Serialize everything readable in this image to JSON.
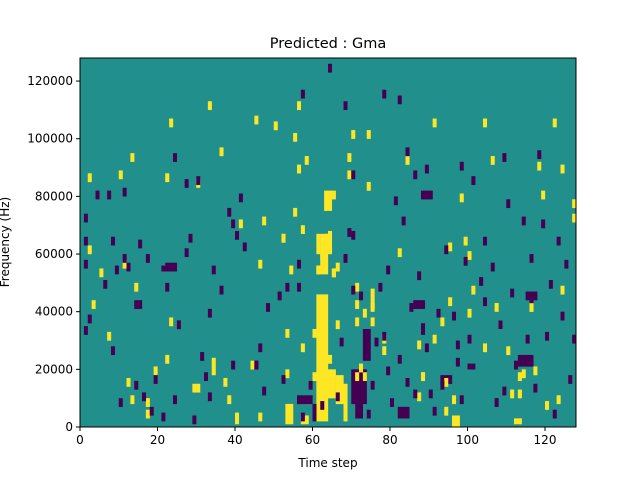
{
  "chart_data": {
    "type": "heatmap",
    "title": "Predicted : Gma",
    "xlabel": "Time step",
    "ylabel": "Frequency (Hz)",
    "xlim": [
      0,
      128
    ],
    "ylim": [
      0,
      128000
    ],
    "x_ticks": [
      0,
      20,
      40,
      60,
      80,
      100,
      120
    ],
    "y_ticks": [
      0,
      20000,
      40000,
      60000,
      80000,
      100000,
      120000
    ],
    "y_tick_labels": [
      "0",
      "20000",
      "40000",
      "60000",
      "80000",
      "100000",
      "120000"
    ],
    "grid": false,
    "legend": "none",
    "colors": {
      "background": "#21908d",
      "high": "#fde725",
      "low": "#440154"
    },
    "background_value": 0,
    "value_levels": {
      "low": -1,
      "background": 0,
      "high": 1
    },
    "time_steps": 128,
    "freq_bins": 128,
    "freq_bin_hz": 1000,
    "high_cells": [
      [
        2,
        60
      ],
      [
        2,
        85
      ],
      [
        5,
        52
      ],
      [
        7,
        30
      ],
      [
        11,
        55
      ],
      [
        12,
        14
      ],
      [
        13,
        8
      ],
      [
        14,
        47
      ],
      [
        17,
        7
      ],
      [
        17,
        3
      ],
      [
        19,
        18
      ],
      [
        22,
        85
      ],
      [
        23,
        104
      ],
      [
        29,
        12
      ],
      [
        30,
        12
      ],
      [
        30,
        83
      ],
      [
        34,
        18
      ],
      [
        34,
        21
      ],
      [
        37,
        14
      ],
      [
        40,
        2
      ],
      [
        40,
        1
      ],
      [
        44,
        20
      ],
      [
        46,
        2
      ],
      [
        52,
        64
      ],
      [
        52,
        64
      ],
      [
        53,
        17
      ],
      [
        55,
        73
      ],
      [
        55,
        99
      ],
      [
        57,
        67
      ],
      [
        60,
        31
      ],
      [
        60,
        16
      ],
      [
        61,
        53
      ],
      [
        61,
        53
      ],
      [
        62,
        58
      ],
      [
        63,
        64
      ],
      [
        63,
        63
      ],
      [
        64,
        65
      ],
      [
        65,
        79
      ],
      [
        65,
        52
      ],
      [
        65,
        52
      ],
      [
        69,
        92
      ],
      [
        69,
        86
      ],
      [
        71,
        35
      ],
      [
        71,
        16
      ],
      [
        73,
        16
      ],
      [
        75,
        40
      ],
      [
        75,
        35
      ],
      [
        78,
        25
      ],
      [
        78,
        29
      ],
      [
        87,
        27
      ],
      [
        88,
        16
      ],
      [
        88,
        16
      ],
      [
        93,
        35
      ],
      [
        94,
        14
      ],
      [
        94,
        4
      ],
      [
        96,
        8
      ],
      [
        99,
        63
      ],
      [
        100,
        58
      ],
      [
        100,
        38
      ],
      [
        101,
        46
      ],
      [
        104,
        26
      ],
      [
        110,
        25
      ],
      [
        113,
        16
      ],
      [
        114,
        17
      ],
      [
        116,
        40
      ],
      [
        116,
        40
      ],
      [
        119,
        79
      ],
      [
        120,
        6
      ],
      [
        122,
        104
      ],
      [
        124,
        88
      ],
      [
        127,
        76
      ],
      [
        127,
        71
      ],
      [
        22,
        22
      ],
      [
        66,
        54
      ],
      [
        70,
        100
      ],
      [
        84,
        91
      ],
      [
        104,
        104
      ],
      [
        117,
        18
      ],
      [
        95,
        42
      ],
      [
        98,
        78
      ],
      [
        107,
        40
      ],
      [
        33,
        110
      ],
      [
        50,
        103
      ],
      [
        57,
        26
      ],
      [
        3,
        41
      ],
      [
        47,
        70
      ],
      [
        124,
        46
      ],
      [
        123,
        8
      ],
      [
        10,
        86
      ],
      [
        45,
        105
      ],
      [
        66,
        34
      ],
      [
        38,
        8
      ],
      [
        91,
        104
      ],
      [
        95,
        61
      ],
      [
        87,
        9
      ],
      [
        13,
        92
      ],
      [
        56,
        110
      ],
      [
        56,
        88
      ],
      [
        58,
        91
      ],
      [
        64,
        22
      ],
      [
        74,
        100
      ],
      [
        74,
        82
      ],
      [
        106,
        91
      ],
      [
        53,
        31
      ],
      [
        23,
        35
      ],
      [
        41,
        69
      ],
      [
        36,
        94
      ],
      [
        71,
        41
      ],
      [
        71,
        47
      ],
      [
        91,
        29
      ],
      [
        46,
        55
      ],
      [
        82,
        59
      ],
      [
        113,
        10
      ],
      [
        111,
        10
      ],
      [
        118,
        89
      ],
      [
        72,
        19
      ],
      [
        73,
        38
      ],
      [
        108,
        34
      ],
      [
        54,
        53
      ]
    ],
    "high_blocks": [
      {
        "x": [
          61,
          64
        ],
        "y": [
          2,
          46
        ]
      },
      {
        "x": [
          62,
          66
        ],
        "y": [
          10,
          20
        ]
      },
      {
        "x": [
          62,
          64
        ],
        "y": [
          53,
          67
        ]
      },
      {
        "x": [
          63,
          65
        ],
        "y": [
          75,
          82
        ]
      },
      {
        "x": [
          64,
          65
        ],
        "y": [
          60,
          66
        ]
      },
      {
        "x": [
          53,
          55
        ],
        "y": [
          1,
          8
        ]
      },
      {
        "x": [
          57,
          59
        ],
        "y": [
          1,
          4
        ]
      },
      {
        "x": [
          61,
          62
        ],
        "y": [
          60,
          67
        ]
      },
      {
        "x": [
          66,
          68
        ],
        "y": [
          8,
          18
        ]
      },
      {
        "x": [
          68,
          69
        ],
        "y": [
          2,
          15
        ]
      },
      {
        "x": [
          71,
          72
        ],
        "y": [
          3,
          10
        ]
      },
      {
        "x": [
          75,
          76
        ],
        "y": [
          41,
          48
        ]
      },
      {
        "x": [
          96,
          98
        ],
        "y": [
          0,
          4
        ]
      },
      {
        "x": [
          112,
          114
        ],
        "y": [
          1,
          3
        ]
      }
    ],
    "low_cells": [
      [
        1,
        71
      ],
      [
        1,
        63
      ],
      [
        4,
        79
      ],
      [
        6,
        48
      ],
      [
        7,
        79
      ],
      [
        8,
        63
      ],
      [
        9,
        53
      ],
      [
        10,
        7
      ],
      [
        11,
        80
      ],
      [
        12,
        54
      ],
      [
        14,
        13
      ],
      [
        15,
        62
      ],
      [
        15,
        41
      ],
      [
        16,
        9
      ],
      [
        18,
        4
      ],
      [
        19,
        15
      ],
      [
        21,
        2
      ],
      [
        22,
        47
      ],
      [
        24,
        8
      ],
      [
        25,
        34
      ],
      [
        27,
        83
      ],
      [
        27,
        59
      ],
      [
        28,
        64
      ],
      [
        29,
        1
      ],
      [
        30,
        84
      ],
      [
        31,
        23
      ],
      [
        32,
        16
      ],
      [
        33,
        9
      ],
      [
        34,
        53
      ],
      [
        36,
        46
      ],
      [
        38,
        73
      ],
      [
        39,
        20
      ],
      [
        40,
        65
      ],
      [
        41,
        78
      ],
      [
        42,
        61
      ],
      [
        45,
        20
      ],
      [
        46,
        26
      ],
      [
        47,
        11
      ],
      [
        48,
        40
      ],
      [
        51,
        44
      ],
      [
        53,
        47
      ],
      [
        56,
        55
      ],
      [
        57,
        2
      ],
      [
        59,
        13
      ],
      [
        60,
        5
      ],
      [
        60,
        2
      ],
      [
        62,
        6
      ],
      [
        66,
        9
      ],
      [
        67,
        28
      ],
      [
        68,
        57
      ],
      [
        69,
        66
      ],
      [
        70,
        86
      ],
      [
        70,
        65
      ],
      [
        72,
        44
      ],
      [
        74,
        3
      ],
      [
        75,
        13
      ],
      [
        76,
        28
      ],
      [
        77,
        47
      ],
      [
        78,
        30
      ],
      [
        79,
        53
      ],
      [
        79,
        18
      ],
      [
        80,
        7
      ],
      [
        81,
        77
      ],
      [
        82,
        22
      ],
      [
        83,
        70
      ],
      [
        84,
        14
      ],
      [
        85,
        40
      ],
      [
        86,
        10
      ],
      [
        87,
        51
      ],
      [
        89,
        26
      ],
      [
        91,
        4
      ],
      [
        92,
        38
      ],
      [
        93,
        13
      ],
      [
        94,
        60
      ],
      [
        96,
        37
      ],
      [
        97,
        21
      ],
      [
        98,
        8
      ],
      [
        99,
        56
      ],
      [
        100,
        29
      ],
      [
        101,
        84
      ],
      [
        103,
        49
      ],
      [
        104,
        63
      ],
      [
        106,
        54
      ],
      [
        107,
        7
      ],
      [
        108,
        34
      ],
      [
        109,
        11
      ],
      [
        110,
        76
      ],
      [
        111,
        45
      ],
      [
        112,
        20
      ],
      [
        114,
        70
      ],
      [
        115,
        29
      ],
      [
        116,
        57
      ],
      [
        117,
        12
      ],
      [
        118,
        93
      ],
      [
        119,
        69
      ],
      [
        120,
        30
      ],
      [
        121,
        48
      ],
      [
        122,
        3
      ],
      [
        123,
        63
      ],
      [
        124,
        37
      ],
      [
        125,
        55
      ],
      [
        126,
        15
      ],
      [
        127,
        29
      ],
      [
        64,
        123
      ],
      [
        68,
        110
      ],
      [
        78,
        114
      ],
      [
        82,
        112
      ],
      [
        84,
        94
      ],
      [
        86,
        86
      ],
      [
        89,
        88
      ],
      [
        109,
        92
      ],
      [
        39,
        69
      ],
      [
        98,
        89
      ],
      [
        57,
        114
      ],
      [
        97,
        27
      ],
      [
        24,
        92
      ],
      [
        104,
        42
      ],
      [
        90,
        10
      ],
      [
        2,
        36
      ],
      [
        8,
        25
      ],
      [
        1,
        32
      ],
      [
        1,
        55
      ],
      [
        70,
        46
      ],
      [
        14,
        41
      ],
      [
        11,
        57
      ],
      [
        56,
        47
      ],
      [
        33,
        38
      ],
      [
        116,
        43
      ],
      [
        17,
        57
      ],
      [
        45,
        20
      ],
      [
        52,
        15
      ]
    ],
    "low_blocks": [
      {
        "x": [
          56,
          60
        ],
        "y": [
          8,
          11
        ]
      },
      {
        "x": [
          70,
          74
        ],
        "y": [
          8,
          20
        ]
      },
      {
        "x": [
          71,
          73
        ],
        "y": [
          3,
          8
        ]
      },
      {
        "x": [
          73,
          75
        ],
        "y": [
          23,
          34
        ]
      },
      {
        "x": [
          82,
          85
        ],
        "y": [
          3,
          7
        ]
      },
      {
        "x": [
          88,
          89
        ],
        "y": [
          32,
          36
        ]
      },
      {
        "x": [
          93,
          96
        ],
        "y": [
          15,
          18
        ]
      },
      {
        "x": [
          100,
          102
        ],
        "y": [
          20,
          22
        ]
      },
      {
        "x": [
          115,
          118
        ],
        "y": [
          44,
          47
        ]
      },
      {
        "x": [
          113,
          117
        ],
        "y": [
          21,
          25
        ]
      },
      {
        "x": [
          22,
          25
        ],
        "y": [
          54,
          57
        ]
      },
      {
        "x": [
          21,
          23
        ],
        "y": [
          54,
          56
        ]
      },
      {
        "x": [
          86,
          89
        ],
        "y": [
          41,
          44
        ]
      },
      {
        "x": [
          88,
          91
        ],
        "y": [
          79,
          82
        ]
      }
    ]
  }
}
